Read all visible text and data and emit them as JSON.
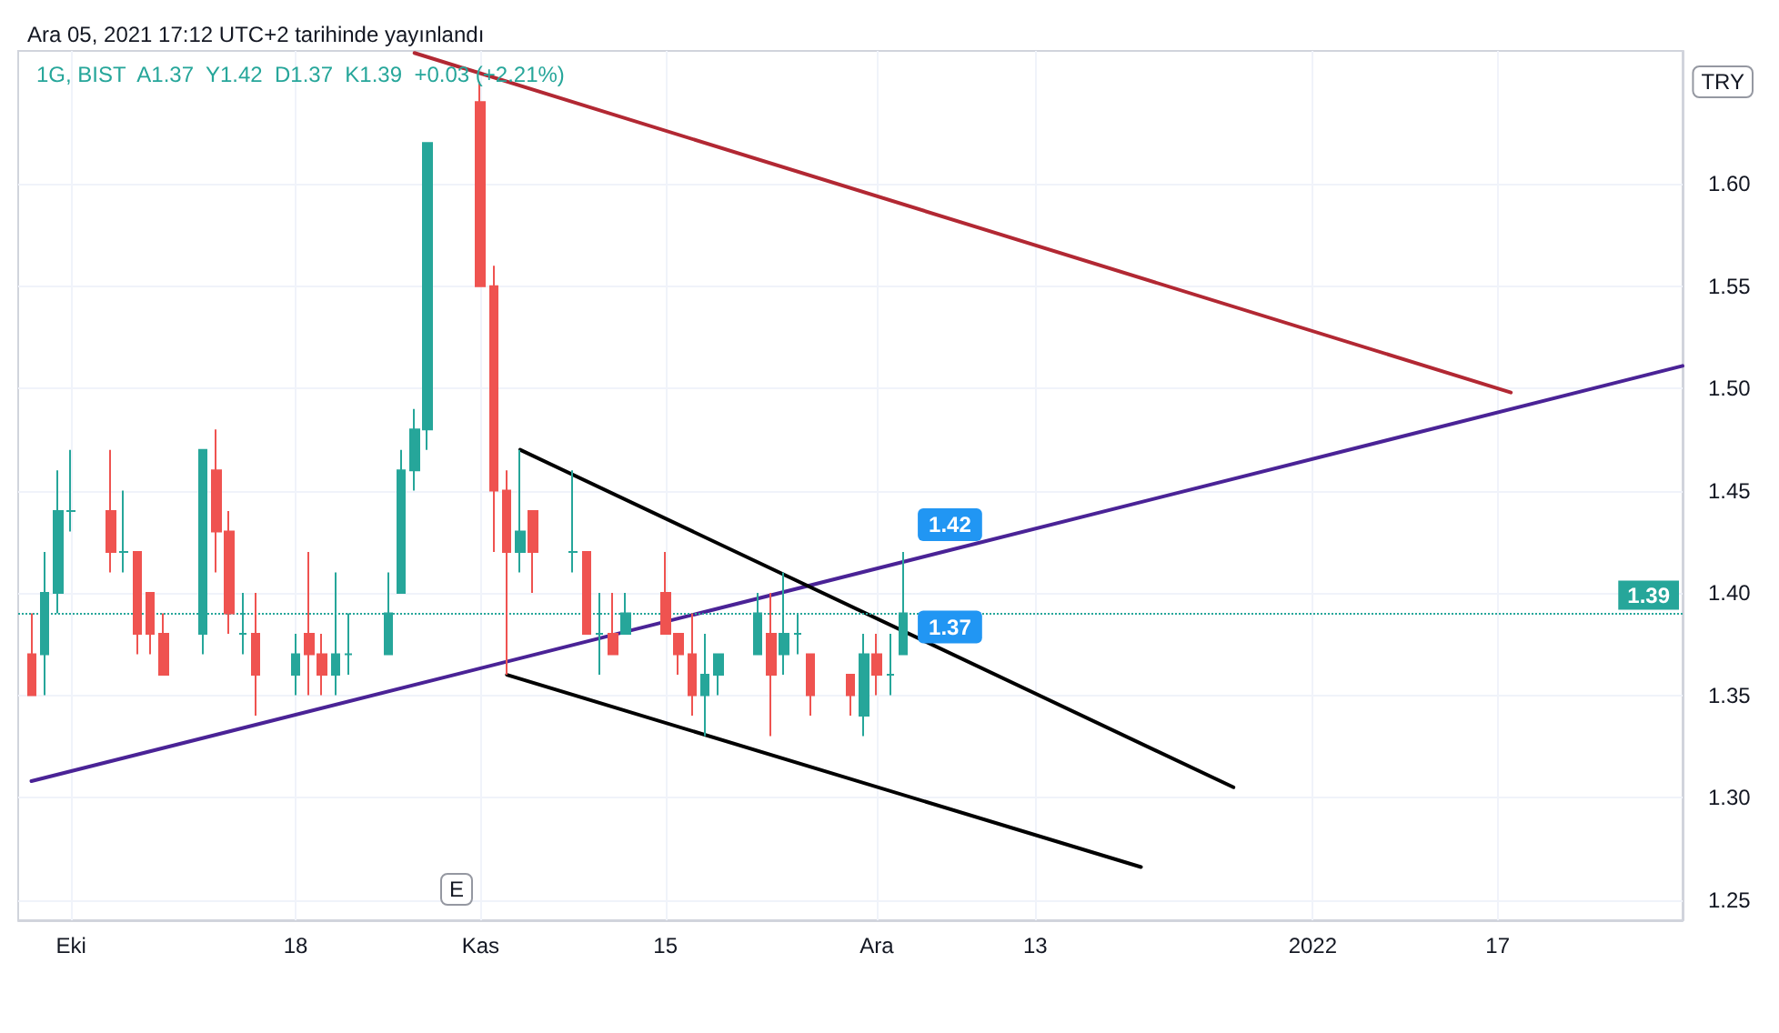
{
  "chart_data": {
    "type": "candlestick",
    "title": "Ara 05, 2021 17:12 UTC+2 tarihinde yayınlandı",
    "subtitle": "1G, BIST  A1.37  Y1.42  D1.37  K1.39  +0.03 (+2.21%)",
    "x": [
      "2021-09-28",
      "2021-09-29",
      "2021-09-30",
      "2021-10-01",
      "2021-10-04",
      "2021-10-05",
      "2021-10-06",
      "2021-10-07",
      "2021-10-08",
      "2021-10-11",
      "2021-10-12",
      "2021-10-13",
      "2021-10-14",
      "2021-10-15",
      "2021-10-18",
      "2021-10-19",
      "2021-10-20",
      "2021-10-21",
      "2021-10-22",
      "2021-10-25",
      "2021-10-26",
      "2021-10-27",
      "2021-10-28",
      "2021-11-01",
      "2021-11-02",
      "2021-11-03",
      "2021-11-04",
      "2021-11-05",
      "2021-11-08",
      "2021-11-09",
      "2021-11-10",
      "2021-11-11",
      "2021-11-12",
      "2021-11-15",
      "2021-11-16",
      "2021-11-17",
      "2021-11-18",
      "2021-11-19",
      "2021-11-22",
      "2021-11-23",
      "2021-11-24",
      "2021-11-25",
      "2021-11-26",
      "2021-11-29",
      "2021-11-30",
      "2021-12-01",
      "2021-12-02",
      "2021-12-03"
    ],
    "ohlc": [
      [
        1.37,
        1.39,
        1.35,
        1.35
      ],
      [
        1.37,
        1.42,
        1.35,
        1.4
      ],
      [
        1.4,
        1.46,
        1.39,
        1.44
      ],
      [
        1.44,
        1.47,
        1.43,
        1.44
      ],
      [
        1.44,
        1.47,
        1.41,
        1.42
      ],
      [
        1.42,
        1.45,
        1.41,
        1.42
      ],
      [
        1.42,
        1.42,
        1.37,
        1.38
      ],
      [
        1.4,
        1.4,
        1.37,
        1.38
      ],
      [
        1.38,
        1.39,
        1.36,
        1.36
      ],
      [
        1.38,
        1.47,
        1.37,
        1.47
      ],
      [
        1.46,
        1.48,
        1.41,
        1.43
      ],
      [
        1.43,
        1.44,
        1.38,
        1.39
      ],
      [
        1.38,
        1.4,
        1.37,
        1.38
      ],
      [
        1.38,
        1.4,
        1.34,
        1.36
      ],
      [
        1.36,
        1.38,
        1.35,
        1.37
      ],
      [
        1.38,
        1.42,
        1.35,
        1.37
      ],
      [
        1.37,
        1.38,
        1.35,
        1.36
      ],
      [
        1.36,
        1.41,
        1.35,
        1.37
      ],
      [
        1.37,
        1.39,
        1.36,
        1.37
      ],
      [
        1.37,
        1.41,
        1.37,
        1.39
      ],
      [
        1.4,
        1.47,
        1.4,
        1.46
      ],
      [
        1.46,
        1.49,
        1.45,
        1.48
      ],
      [
        1.48,
        1.62,
        1.47,
        1.62
      ],
      [
        1.64,
        1.65,
        1.55,
        1.55
      ],
      [
        1.55,
        1.56,
        1.42,
        1.45
      ],
      [
        1.45,
        1.46,
        1.36,
        1.42
      ],
      [
        1.42,
        1.47,
        1.41,
        1.43
      ],
      [
        1.44,
        1.44,
        1.4,
        1.42
      ],
      [
        1.42,
        1.46,
        1.41,
        1.42
      ],
      [
        1.42,
        1.42,
        1.38,
        1.38
      ],
      [
        1.38,
        1.4,
        1.36,
        1.38
      ],
      [
        1.38,
        1.4,
        1.37,
        1.37
      ],
      [
        1.38,
        1.4,
        1.38,
        1.39
      ],
      [
        1.4,
        1.42,
        1.38,
        1.38
      ],
      [
        1.38,
        1.38,
        1.36,
        1.37
      ],
      [
        1.37,
        1.39,
        1.34,
        1.35
      ],
      [
        1.35,
        1.38,
        1.33,
        1.36
      ],
      [
        1.36,
        1.37,
        1.35,
        1.37
      ],
      [
        1.37,
        1.4,
        1.37,
        1.39
      ],
      [
        1.38,
        1.4,
        1.33,
        1.36
      ],
      [
        1.37,
        1.41,
        1.36,
        1.38
      ],
      [
        1.38,
        1.39,
        1.37,
        1.38
      ],
      [
        1.37,
        1.37,
        1.34,
        1.35
      ],
      [
        1.36,
        1.36,
        1.34,
        1.35
      ],
      [
        1.34,
        1.38,
        1.33,
        1.37
      ],
      [
        1.37,
        1.38,
        1.35,
        1.36
      ],
      [
        1.36,
        1.38,
        1.35,
        1.36
      ],
      [
        1.37,
        1.42,
        1.37,
        1.39
      ]
    ],
    "colors": [
      "#ef5350",
      "#26a69a",
      "#26a69a",
      "#26a69a",
      "#ef5350",
      "#26a69a",
      "#ef5350",
      "#ef5350",
      "#ef5350",
      "#26a69a",
      "#ef5350",
      "#ef5350",
      "#26a69a",
      "#ef5350",
      "#26a69a",
      "#ef5350",
      "#ef5350",
      "#26a69a",
      "#26a69a",
      "#26a69a",
      "#26a69a",
      "#26a69a",
      "#26a69a",
      "#ef5350",
      "#ef5350",
      "#ef5350",
      "#26a69a",
      "#ef5350",
      "#26a69a",
      "#ef5350",
      "#26a69a",
      "#ef5350",
      "#26a69a",
      "#ef5350",
      "#ef5350",
      "#ef5350",
      "#26a69a",
      "#26a69a",
      "#26a69a",
      "#ef5350",
      "#26a69a",
      "#26a69a",
      "#ef5350",
      "#ef5350",
      "#26a69a",
      "#ef5350",
      "#26a69a",
      "#26a69a"
    ],
    "series": [
      {
        "type": "line",
        "color": "#b22833",
        "x": [
          "2021-10-27",
          "2022-01-18"
        ],
        "values": [
          1.664,
          1.498
        ]
      },
      {
        "type": "line",
        "color": "#4a2396",
        "x": [
          "2021-09-28",
          "2022-01-31"
        ],
        "values": [
          1.308,
          1.511
        ]
      },
      {
        "type": "line",
        "color": "#000000",
        "x": [
          "2021-11-04",
          "2021-12-28"
        ],
        "values": [
          1.47,
          1.305
        ]
      },
      {
        "type": "line",
        "color": "#000000",
        "x": [
          "2021-11-03",
          "2021-12-21"
        ],
        "values": [
          1.36,
          1.266
        ]
      }
    ],
    "xlim": [
      "2021-09-27",
      "2022-01-31"
    ],
    "ylim": [
      1.24,
      1.665
    ],
    "yticks": [
      1.25,
      {
        "value": 1.3,
        "label": "1.30"
      },
      1.35,
      {
        "value": 1.4,
        "label": "1.40"
      },
      1.45,
      {
        "value": 1.5,
        "label": "1.50"
      },
      1.55,
      {
        "value": 1.6,
        "label": "1.60"
      }
    ],
    "xticks": [
      {
        "value": "2021-10-01",
        "label": "Eki"
      },
      {
        "value": "2021-10-18",
        "label": "18"
      },
      {
        "value": "2021-11-01",
        "label": "Kas"
      },
      {
        "value": "2021-11-15",
        "label": "15"
      },
      {
        "value": "2021-12-01",
        "label": "Ara"
      },
      {
        "value": "2021-12-13",
        "label": "13"
      },
      {
        "value": "2022-01-03",
        "label": "2022"
      },
      {
        "value": "2022-01-17",
        "label": "17"
      }
    ],
    "ref_lines": [
      {
        "axis": "y",
        "value": 1.39,
        "label": "1.39",
        "color": "#26a69a",
        "line_style": "dotted"
      }
    ],
    "annotations": [
      "TRY",
      "E",
      {
        "text": "1.42",
        "x": "2021-12-03",
        "y": 1.42
      },
      {
        "text": "1.37",
        "x": "2021-12-03",
        "y": 1.37
      }
    ],
    "grid": true,
    "line_style": "solid"
  }
}
